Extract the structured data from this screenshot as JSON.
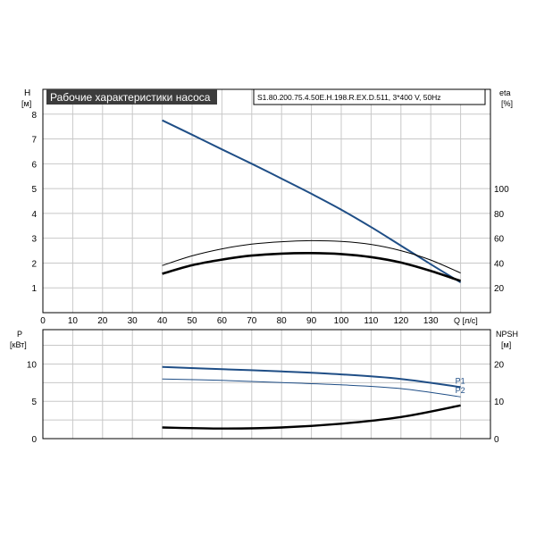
{
  "title": "Рабочие характеристики насоса",
  "model": "S1.80.200.75.4.50E.H.198.R.EX.D.511, 3*400 V, 50Hz",
  "colors": {
    "blue": "#1f4e86",
    "black": "#000000",
    "grid": "#c8c8c8",
    "title_bg": "#3c3c3c"
  },
  "chart_data": [
    {
      "type": "line",
      "panel": "top",
      "xlabel": "Q [л/с]",
      "ylabel": "H",
      "ylabel_unit": "[м]",
      "y2label": "eta",
      "y2label_unit": "[%]",
      "xlim": [
        0,
        150
      ],
      "xticks": [
        0,
        10,
        20,
        30,
        40,
        50,
        60,
        70,
        80,
        90,
        100,
        110,
        120,
        130
      ],
      "ylim": [
        0,
        9
      ],
      "yticks": [
        1,
        2,
        3,
        4,
        5,
        6,
        7,
        8
      ],
      "y2lim": [
        0,
        180
      ],
      "y2ticks": [
        20,
        40,
        60,
        80,
        100
      ],
      "grid": true,
      "series": [
        {
          "axis": "left",
          "color": "#1f4e86",
          "width": 2,
          "x": [
            40,
            50,
            60,
            70,
            80,
            90,
            100,
            110,
            120,
            130,
            140
          ],
          "y": [
            7.75,
            7.17,
            6.58,
            6.0,
            5.4,
            4.79,
            4.15,
            3.45,
            2.7,
            1.95,
            1.22
          ]
        },
        {
          "axis": "left",
          "color": "#000000",
          "width": 1,
          "x": [
            40,
            50,
            60,
            70,
            80,
            90,
            100,
            110,
            120,
            130,
            140
          ],
          "y": [
            1.9,
            2.29,
            2.57,
            2.76,
            2.86,
            2.9,
            2.87,
            2.75,
            2.5,
            2.12,
            1.6
          ]
        },
        {
          "axis": "left",
          "color": "#000000",
          "width": 2.6,
          "x": [
            40,
            50,
            60,
            70,
            80,
            90,
            100,
            110,
            120,
            130,
            140
          ],
          "y": [
            1.57,
            1.91,
            2.14,
            2.3,
            2.38,
            2.4,
            2.36,
            2.24,
            2.02,
            1.68,
            1.28
          ]
        }
      ]
    },
    {
      "type": "line",
      "panel": "bottom",
      "ylabel": "P",
      "ylabel_unit": "[кВт]",
      "y2label": "NPSH",
      "y2label_unit": "[м]",
      "xlim": [
        0,
        150
      ],
      "ylim": [
        0,
        14.6
      ],
      "yticks": [
        0,
        5,
        10
      ],
      "y2lim": [
        0,
        29.2
      ],
      "y2ticks": [
        0,
        10,
        20
      ],
      "grid": true,
      "series": [
        {
          "name": "P1",
          "axis": "left",
          "color": "#1f4e86",
          "width": 2,
          "x": [
            40,
            60,
            80,
            100,
            120,
            140
          ],
          "y": [
            9.6,
            9.3,
            9.0,
            8.6,
            8.0,
            6.9
          ]
        },
        {
          "name": "P2",
          "axis": "left",
          "color": "#1f4e86",
          "width": 1,
          "x": [
            40,
            60,
            80,
            100,
            120,
            140
          ],
          "y": [
            8.0,
            7.8,
            7.5,
            7.2,
            6.7,
            5.6
          ]
        },
        {
          "axis": "right",
          "color": "#000000",
          "width": 2.4,
          "x": [
            40,
            60,
            80,
            100,
            120,
            140
          ],
          "y": [
            3.0,
            2.7,
            3.0,
            4.0,
            5.8,
            8.9
          ]
        }
      ]
    }
  ]
}
